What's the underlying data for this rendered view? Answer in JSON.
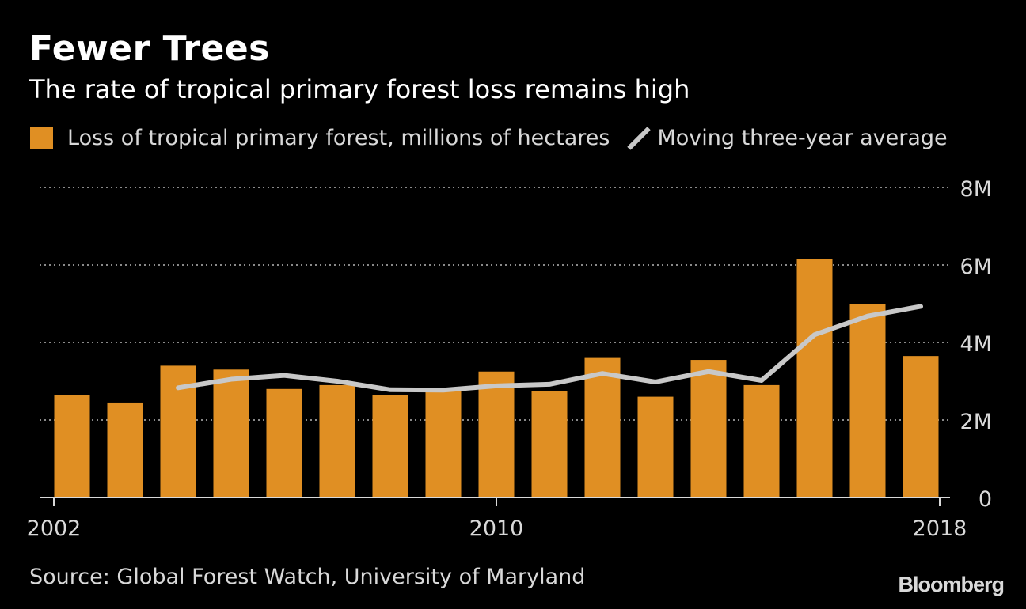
{
  "header": {
    "title": "Fewer Trees",
    "subtitle": "The rate of tropical primary forest loss remains high"
  },
  "legend": {
    "bar_label": "Loss of tropical primary forest, millions of hectares",
    "line_label": "Moving three-year average"
  },
  "footer": {
    "source": "Source: Global Forest Watch, University of Maryland",
    "brand": "Bloomberg"
  },
  "colors": {
    "bar": "#e08f23",
    "line": "#c8c8c8",
    "background": "#000000",
    "grid": "#8a8a8a"
  },
  "chart_data": {
    "type": "bar",
    "x": [
      2002,
      2003,
      2004,
      2005,
      2006,
      2007,
      2008,
      2009,
      2010,
      2011,
      2012,
      2013,
      2014,
      2015,
      2016,
      2017,
      2018
    ],
    "series": [
      {
        "name": "Loss of tropical primary forest, millions of hectares",
        "type": "bar",
        "values": [
          2.65,
          2.45,
          3.4,
          3.3,
          2.8,
          2.9,
          2.65,
          2.75,
          3.25,
          2.75,
          3.6,
          2.6,
          3.55,
          2.9,
          6.15,
          5.0,
          3.65
        ]
      },
      {
        "name": "Moving three-year average",
        "type": "line",
        "values": [
          null,
          null,
          2.83,
          3.05,
          3.15,
          3.0,
          2.78,
          2.77,
          2.88,
          2.92,
          3.2,
          2.98,
          3.25,
          3.02,
          4.2,
          4.68,
          4.93
        ]
      }
    ],
    "y_ticks": [
      0,
      2,
      4,
      6,
      8
    ],
    "y_tick_labels": [
      "0",
      "2M",
      "4M",
      "6M",
      "8M"
    ],
    "x_tick_labels": [
      "2002",
      "2010",
      "2018"
    ],
    "ylim": [
      0,
      8
    ],
    "grid": true,
    "y_axis_position": "right",
    "legend_position": "top-left"
  }
}
